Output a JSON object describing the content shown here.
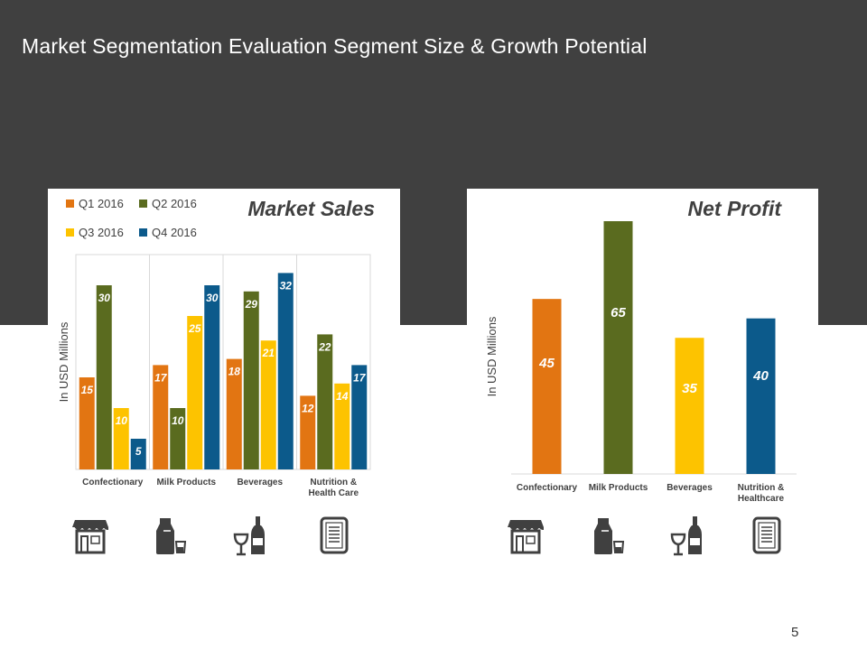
{
  "slide": {
    "title": "Market Segmentation Evaluation Segment Size & Growth Potential",
    "page_number": "5"
  },
  "colors": {
    "header_band": "#404040",
    "q1": "#E27512",
    "q2": "#5A6B1F",
    "q3": "#FDC300",
    "q4": "#0C5A8B"
  },
  "icons": [
    "store-icon",
    "milk-bottle-icon",
    "wine-bottle-icon",
    "medicine-label-icon"
  ],
  "chart_data": [
    {
      "type": "bar",
      "title": "Market Sales",
      "ylabel": "In USD Millions",
      "xlabel": "",
      "categories": [
        "Confectionary",
        "Milk Products",
        "Beverages",
        "Nutrition & Health Care"
      ],
      "category_lines": [
        [
          "Confectionary"
        ],
        [
          "Milk Products"
        ],
        [
          "Beverages"
        ],
        [
          "Nutrition &",
          "Health Care"
        ]
      ],
      "series": [
        {
          "name": "Q1 2016",
          "color": "#E27512",
          "values": [
            15,
            17,
            18,
            12
          ]
        },
        {
          "name": "Q2 2016",
          "color": "#5A6B1F",
          "values": [
            30,
            10,
            29,
            22
          ]
        },
        {
          "name": "Q3 2016",
          "color": "#FDC300",
          "values": [
            10,
            25,
            21,
            14
          ]
        },
        {
          "name": "Q4 2016",
          "color": "#0C5A8B",
          "values": [
            5,
            30,
            32,
            17
          ]
        }
      ],
      "ylim": [
        0,
        35
      ],
      "legend": "top-left",
      "grid": false
    },
    {
      "type": "bar",
      "title": "Net Profit",
      "ylabel": "In USD Millions",
      "xlabel": "",
      "categories": [
        "Confectionary",
        "Milk Products",
        "Beverages",
        "Nutrition & Healthcare"
      ],
      "category_lines": [
        [
          "Confectionary"
        ],
        [
          "Milk Products"
        ],
        [
          "Beverages"
        ],
        [
          "Nutrition &",
          "Healthcare"
        ]
      ],
      "values": [
        45,
        65,
        35,
        40
      ],
      "colors": [
        "#E27512",
        "#5A6B1F",
        "#FDC300",
        "#0C5A8B"
      ],
      "ylim": [
        0,
        65
      ],
      "grid": false
    }
  ]
}
